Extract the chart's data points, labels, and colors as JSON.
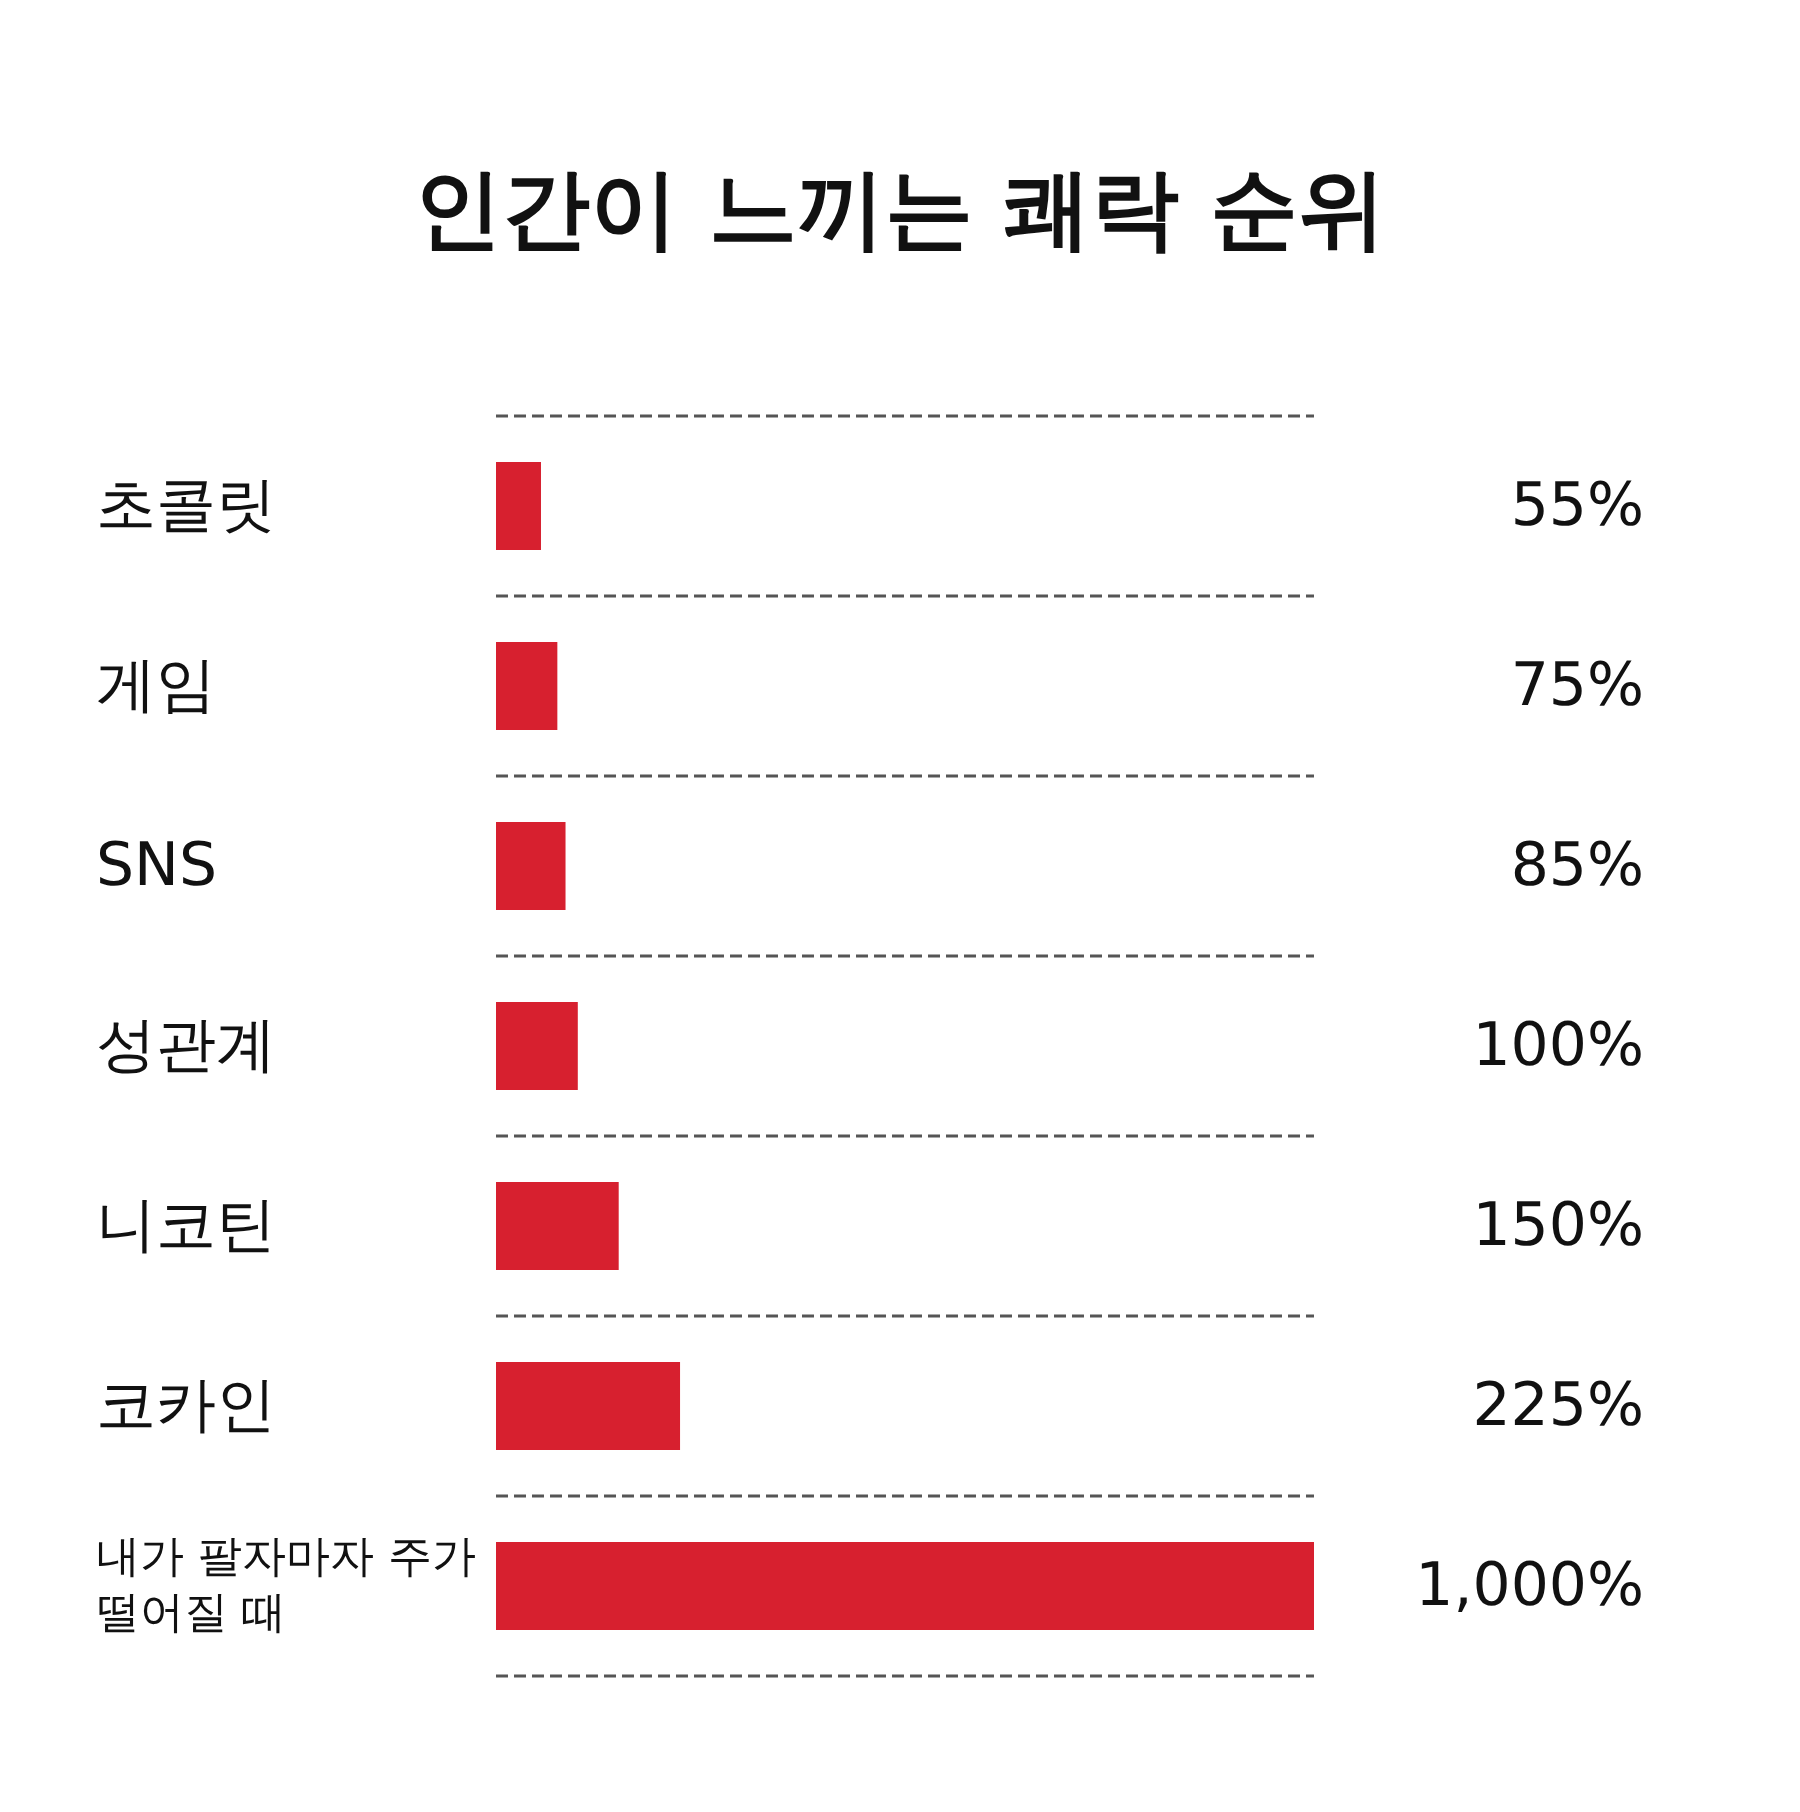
{
  "chart_data": {
    "type": "bar",
    "orientation": "horizontal",
    "title": "인간이 느끼는 쾌락 순위",
    "categories": [
      "초콜릿",
      "게임",
      "SNS",
      "성관계",
      "니코틴",
      "코카인",
      "내가 팔자마자 주가 떨어질 때"
    ],
    "values": [
      55,
      75,
      85,
      100,
      150,
      225,
      1000
    ],
    "value_labels": [
      "55%",
      "75%",
      "85%",
      "100%",
      "150%",
      "225%",
      "1,000%"
    ],
    "color": "#d7202f",
    "grid": "y"
  }
}
